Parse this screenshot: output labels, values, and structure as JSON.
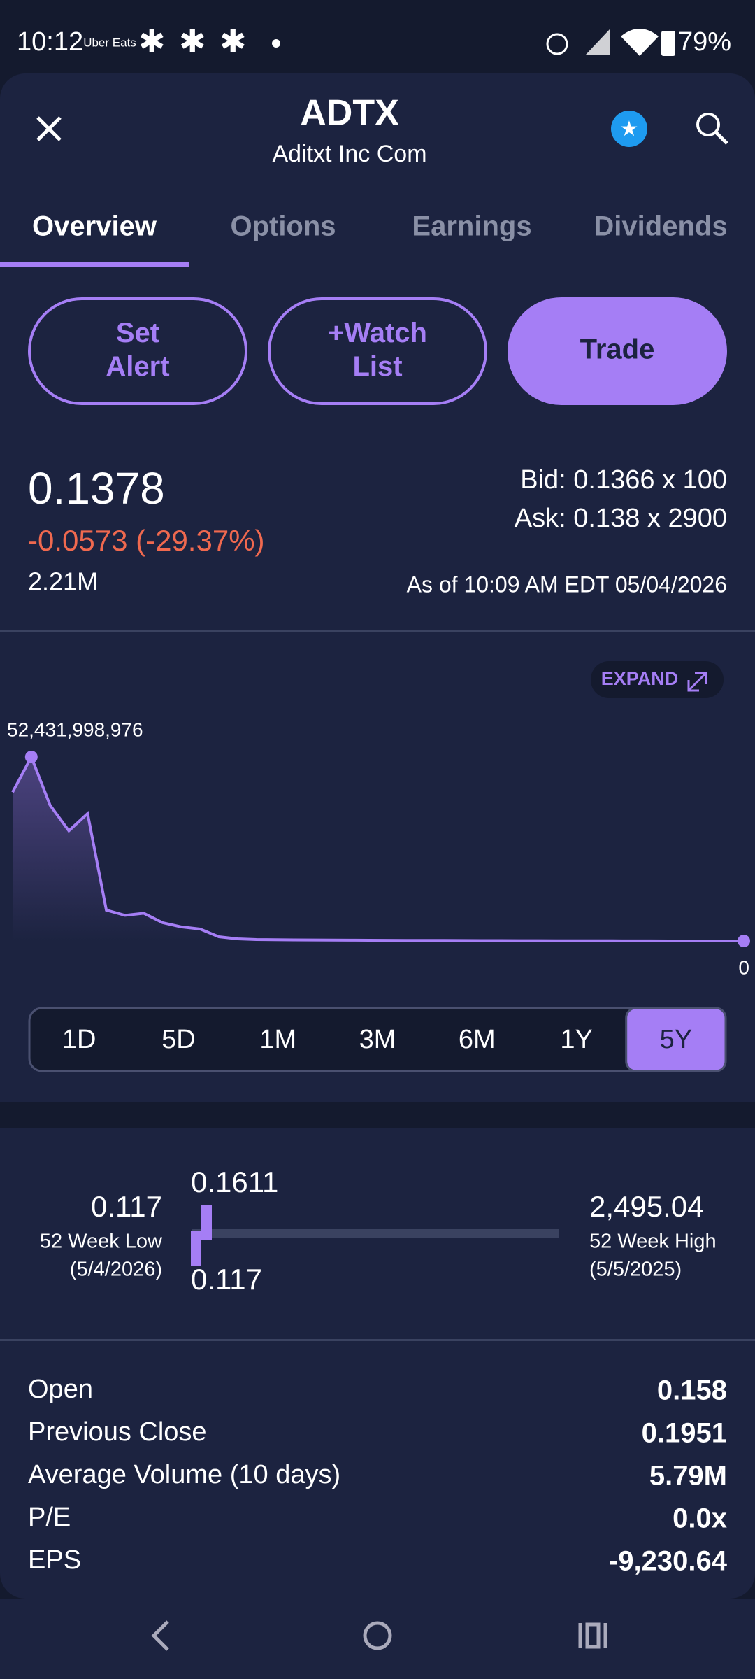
{
  "status_bar": {
    "time": "10:12",
    "app_badge": "Uber Eats",
    "battery": "79%"
  },
  "header": {
    "symbol": "ADTX",
    "company": "Aditxt Inc Com"
  },
  "tabs": [
    "Overview",
    "Options",
    "Earnings",
    "Dividends"
  ],
  "actions": [
    "Set Alert",
    "+Watch List",
    "Trade"
  ],
  "quote": {
    "price": "0.1378",
    "change": "-0.0573 (-29.37%)",
    "volume": "2.21M",
    "bid": "Bid: 0.1366 x 100",
    "ask": "Ask: 0.138 x 2900",
    "as_of": "As of 10:09 AM EDT 05/04/2026"
  },
  "chart": {
    "type": "line",
    "expand": "EXPAND",
    "color": "#a57ef5",
    "ylim": [
      {
        "value": 0,
        "label": "0"
      },
      {
        "value": 52431998976,
        "label": "52,431,998,976"
      }
    ],
    "values": [
      42400000000,
      52431998976,
      38700000000,
      31400000000,
      36300000000,
      8800000000,
      7300000000,
      7900000000,
      5200000000,
      4000000000,
      3400000000,
      1200000000,
      600000000,
      400000000,
      350000000,
      300000000,
      280000000,
      250000000,
      220000000,
      200000000,
      180000000,
      160000000,
      150000000,
      140000000,
      120000000,
      100000000,
      90000000,
      80000000,
      70000000,
      60000000,
      50000000,
      40000000,
      30000000,
      20000000,
      10000000,
      5000000,
      2000000,
      1000000,
      500000,
      0.1378
    ],
    "ranges": [
      "1D",
      "5D",
      "1M",
      "3M",
      "6M",
      "1Y",
      "5Y"
    ],
    "selected_range": "5Y"
  },
  "week52": {
    "low": "0.117",
    "low_label": "52 Week Low",
    "low_date": "(5/4/2026)",
    "high": "2,495.04",
    "high_label": "52 Week High",
    "high_date": "(5/5/2025)",
    "current_top": "0.1611",
    "current_bottom": "0.117"
  },
  "stats": [
    [
      "Open",
      "0.158"
    ],
    [
      "Previous Close",
      "0.1951"
    ],
    [
      "Average Volume (10 days)",
      "5.79M"
    ],
    [
      "P/E",
      "0.0x"
    ],
    [
      "EPS",
      "-9,230.64"
    ]
  ]
}
